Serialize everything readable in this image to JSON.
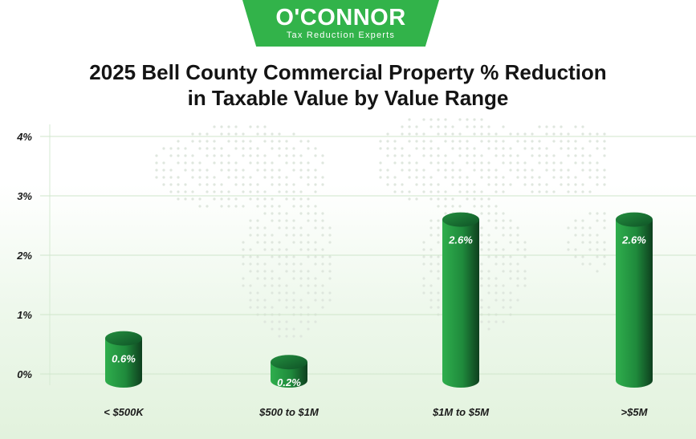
{
  "brand": {
    "name": "O'CONNOR",
    "tagline": "Tax Reduction Experts",
    "color": "#32b34a"
  },
  "chart_data": {
    "type": "bar",
    "title_line1": "2025 Bell County Commercial Property % Reduction",
    "title_line2": "in Taxable Value by Value Range",
    "categories": [
      "< $500K",
      "$500 to $1M",
      "$1M to $5M",
      ">$5M"
    ],
    "values": [
      0.6,
      0.2,
      2.6,
      2.6
    ],
    "value_labels": [
      "0.6%",
      "0.2%",
      "2.6%",
      "2.6%"
    ],
    "yticks": [
      {
        "value": 0,
        "label": "0%"
      },
      {
        "value": 1,
        "label": "1%"
      },
      {
        "value": 2,
        "label": "2%"
      },
      {
        "value": 3,
        "label": "3%"
      },
      {
        "value": 4,
        "label": "4%"
      }
    ],
    "ylim": [
      0,
      4
    ],
    "grid": true,
    "bar_color": "#27a046",
    "bar_dark": "#0f4a22",
    "bar_top": "#1a7a35"
  }
}
